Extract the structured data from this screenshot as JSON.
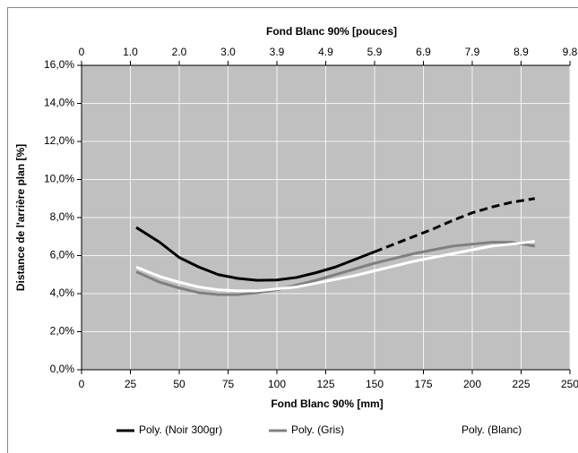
{
  "chart_data": {
    "type": "line",
    "title_top_axis": "Fond Blanc 90% [pouces]",
    "x_label": "Fond Blanc 90% [mm]",
    "y_label": "Distance de l'arrière plan [%]",
    "xlim": [
      0,
      250
    ],
    "xticks": [
      0,
      25,
      50,
      75,
      100,
      125,
      150,
      175,
      200,
      225,
      250
    ],
    "x2lim": [
      0,
      9.843
    ],
    "x2ticks": [
      0,
      {
        "value": 0.984,
        "label": "1.0"
      },
      {
        "value": 1.969,
        "label": "2.0"
      },
      {
        "value": 2.953,
        "label": "3.0"
      },
      {
        "value": 3.937,
        "label": "3.9"
      },
      {
        "value": 4.921,
        "label": "4.9"
      },
      {
        "value": 5.906,
        "label": "5.9"
      },
      {
        "value": 6.89,
        "label": "6.9"
      },
      {
        "value": 7.874,
        "label": "7.9"
      },
      {
        "value": 8.858,
        "label": "8.9"
      },
      {
        "value": 9.843,
        "label": "9.8"
      }
    ],
    "ylim": [
      0,
      16
    ],
    "yticks": [
      {
        "value": 0,
        "label": "0,0%"
      },
      {
        "value": 2,
        "label": "2,0%"
      },
      {
        "value": 4,
        "label": "4,0%"
      },
      {
        "value": 6,
        "label": "6,0%"
      },
      {
        "value": 8,
        "label": "8,0%"
      },
      {
        "value": 10,
        "label": "10,0%"
      },
      {
        "value": 12,
        "label": "12,0%"
      },
      {
        "value": 14,
        "label": "14,0%"
      },
      {
        "value": 16,
        "label": "16,0%"
      }
    ],
    "grid": true,
    "legend": "bottom",
    "x": [
      28,
      40,
      50,
      60,
      70,
      80,
      90,
      100,
      110,
      120,
      130,
      140,
      150,
      160,
      170,
      180,
      190,
      200,
      210,
      220,
      232
    ],
    "series": [
      {
        "name": "Poly. (Noir 300gr)",
        "color": "#000000",
        "dash_from_x": 150,
        "values": [
          7.48,
          6.7,
          5.9,
          5.4,
          5.0,
          4.8,
          4.7,
          4.72,
          4.85,
          5.1,
          5.4,
          5.8,
          6.2,
          6.6,
          7.0,
          7.4,
          7.85,
          8.25,
          8.55,
          8.8,
          9.0
        ]
      },
      {
        "name": "Poly. (Gris)",
        "color": "#808080",
        "values": [
          5.15,
          4.6,
          4.3,
          4.05,
          3.95,
          3.95,
          4.05,
          4.2,
          4.45,
          4.7,
          5.0,
          5.3,
          5.6,
          5.85,
          6.1,
          6.3,
          6.5,
          6.6,
          6.7,
          6.7,
          6.5
        ]
      },
      {
        "name": "Poly. (Blanc)",
        "color": "#ffffff",
        "values": [
          5.4,
          4.9,
          4.6,
          4.35,
          4.2,
          4.15,
          4.15,
          4.25,
          4.35,
          4.55,
          4.75,
          4.95,
          5.2,
          5.45,
          5.7,
          5.9,
          6.1,
          6.3,
          6.5,
          6.6,
          6.75
        ]
      }
    ]
  }
}
